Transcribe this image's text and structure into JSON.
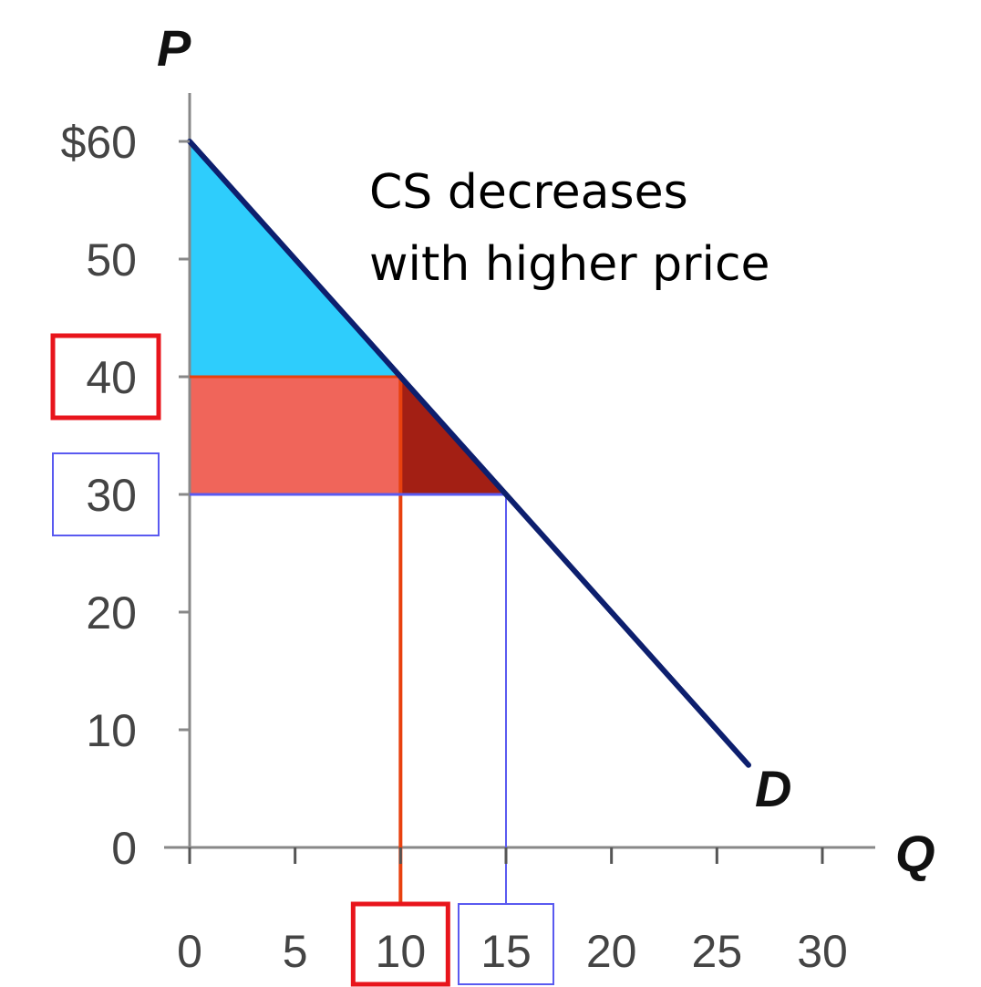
{
  "chart_data": {
    "type": "line",
    "xlabel": "Q",
    "ylabel": "P",
    "xlim": [
      0,
      30
    ],
    "ylim": [
      0,
      60
    ],
    "x_ticks": [
      0,
      5,
      10,
      15,
      20,
      25,
      30
    ],
    "y_ticks": [
      0,
      10,
      20,
      30,
      40,
      50,
      60
    ],
    "x_tick_labels": [
      "0",
      "5",
      "10",
      "15",
      "20",
      "25",
      "30"
    ],
    "y_tick_labels": [
      "0",
      "10",
      "20",
      "30",
      "40",
      "50",
      "$60"
    ],
    "grid": false,
    "series": [
      {
        "name": "D",
        "x": [
          0,
          26.5
        ],
        "y": [
          60,
          7
        ],
        "color": "#0d1f6e"
      }
    ],
    "areas": [
      {
        "polygon": [
          [
            0,
            60
          ],
          [
            0,
            40
          ],
          [
            10,
            40
          ]
        ],
        "color": "#2ecdfc"
      },
      {
        "polygon": [
          [
            0,
            40
          ],
          [
            10,
            40
          ],
          [
            10,
            30
          ],
          [
            0,
            30
          ]
        ],
        "color": "#f0655a"
      },
      {
        "polygon": [
          [
            10,
            40
          ],
          [
            10,
            30
          ],
          [
            15,
            30
          ]
        ],
        "color": "#a31f14"
      }
    ],
    "annotations": [
      {
        "text_lines": [
          "CS decreases",
          "with higher price"
        ]
      }
    ],
    "reference_lines": [
      {
        "x": 10,
        "y": 40,
        "color": "#e8410f"
      },
      {
        "x": 15,
        "y": 30,
        "color": "#5a5af0"
      }
    ],
    "highlighted_ticks": [
      {
        "axis": "y",
        "value": 40,
        "color": "#e8151c"
      },
      {
        "axis": "y",
        "value": 30,
        "color": "#5a5af0"
      },
      {
        "axis": "x",
        "value": 10,
        "color": "#e8151c"
      },
      {
        "axis": "x",
        "value": 15,
        "color": "#5a5af0"
      }
    ]
  }
}
